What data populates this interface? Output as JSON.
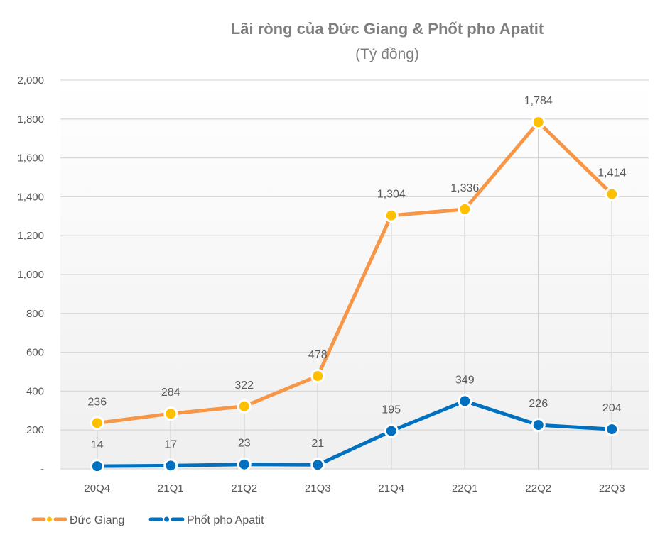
{
  "chart_data": {
    "type": "line",
    "title": "Lãi ròng của Đức Giang & Phốt pho Apatit",
    "subtitle": "(Tỷ đồng)",
    "categories": [
      "20Q4",
      "21Q1",
      "21Q2",
      "21Q3",
      "21Q4",
      "22Q1",
      "22Q2",
      "22Q3"
    ],
    "series": [
      {
        "name": "Đức Giang",
        "values": [
          236,
          284,
          322,
          478,
          1304,
          1336,
          1784,
          1414
        ],
        "labels": [
          "236",
          "284",
          "322",
          "478",
          "1,304",
          "1,336",
          "1,784",
          "1,414"
        ],
        "color": "#F79646",
        "marker_color": "#FFC000"
      },
      {
        "name": "Phốt pho Apatit",
        "values": [
          14,
          17,
          23,
          21,
          195,
          349,
          226,
          204
        ],
        "labels": [
          "14",
          "17",
          "23",
          "21",
          "195",
          "349",
          "226",
          "204"
        ],
        "color": "#0070C0",
        "marker_color": "#0070C0"
      }
    ],
    "ylim": [
      0,
      2000
    ],
    "yticks": [
      0,
      200,
      400,
      600,
      800,
      1000,
      1200,
      1400,
      1600,
      1800,
      2000
    ],
    "ytick_labels": [
      "-",
      "200",
      "400",
      "600",
      "800",
      "1,000",
      "1,200",
      "1,400",
      "1,600",
      "1,800",
      "2,000"
    ],
    "grid": true,
    "drop_lines": true,
    "legend_position": "bottom-left"
  }
}
